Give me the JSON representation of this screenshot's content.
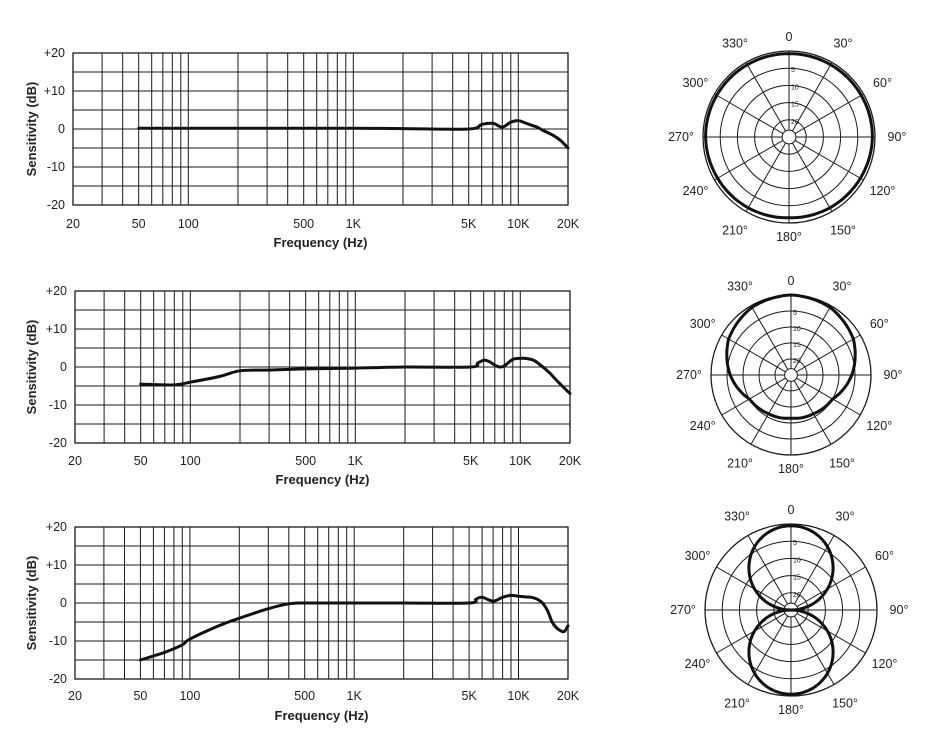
{
  "chart_data": [
    {
      "type": "line",
      "xlabel": "Frequency (Hz)",
      "ylabel": "Sensitivity (dB)",
      "x_scale": "log",
      "xlim": [
        20,
        20000
      ],
      "ylim": [
        -20,
        20
      ],
      "x_ticks": [
        20,
        50,
        100,
        500,
        1000,
        5000,
        10000,
        20000
      ],
      "x_tick_labels": [
        "20",
        "50",
        "100",
        "500",
        "1K",
        "5K",
        "10K",
        "20K"
      ],
      "y_ticks": [
        20,
        10,
        0,
        -10,
        -20
      ],
      "y_tick_labels": [
        "+20",
        "+10",
        "0",
        "-10",
        "-20"
      ],
      "grid": true,
      "x": [
        50,
        100,
        200,
        500,
        1000,
        2000,
        5000,
        6000,
        7000,
        8000,
        9000,
        10000,
        11000,
        12000,
        13000,
        14000,
        16000,
        18000,
        20000
      ],
      "y": [
        0.2,
        0.2,
        0.2,
        0.2,
        0.2,
        0.1,
        0,
        1.2,
        1.5,
        0.5,
        1.8,
        2.2,
        1.6,
        1,
        0.5,
        -0.3,
        -1.5,
        -3,
        -5
      ]
    },
    {
      "type": "line",
      "xlabel": "Frequency (Hz)",
      "ylabel": "Sensitivity (dB)",
      "x_scale": "log",
      "xlim": [
        20,
        20000
      ],
      "ylim": [
        -20,
        20
      ],
      "x_ticks": [
        20,
        50,
        100,
        500,
        1000,
        5000,
        10000,
        20000
      ],
      "x_tick_labels": [
        "20",
        "50",
        "100",
        "500",
        "1K",
        "5K",
        "10K",
        "20K"
      ],
      "y_ticks": [
        20,
        10,
        0,
        -10,
        -20
      ],
      "y_tick_labels": [
        "+20",
        "+10",
        "0",
        "-10",
        "-20"
      ],
      "grid": true,
      "x": [
        50,
        80,
        100,
        150,
        200,
        300,
        500,
        1000,
        2000,
        5000,
        5500,
        6000,
        6500,
        7000,
        7500,
        8000,
        9000,
        10000,
        11000,
        12000,
        13000,
        15000,
        17000,
        20000
      ],
      "y": [
        -4.5,
        -4.7,
        -4,
        -2.5,
        -1,
        -0.8,
        -0.5,
        -0.3,
        0,
        0,
        1,
        1.8,
        1.4,
        0.5,
        0,
        0.3,
        2,
        2.3,
        2.2,
        1.8,
        0.8,
        -1.5,
        -4,
        -7
      ]
    },
    {
      "type": "line",
      "xlabel": "Frequency (Hz)",
      "ylabel": "Sensitivity (dB)",
      "x_scale": "log",
      "xlim": [
        20,
        20000
      ],
      "ylim": [
        -20,
        20
      ],
      "x_ticks": [
        20,
        50,
        100,
        500,
        1000,
        5000,
        10000,
        20000
      ],
      "x_tick_labels": [
        "20",
        "50",
        "100",
        "500",
        "1K",
        "5K",
        "10K",
        "20K"
      ],
      "y_ticks": [
        20,
        10,
        0,
        -10,
        -20
      ],
      "y_tick_labels": [
        "+20",
        "+10",
        "0",
        "-10",
        "-20"
      ],
      "grid": true,
      "x": [
        50,
        70,
        90,
        100,
        150,
        200,
        300,
        400,
        500,
        1000,
        2000,
        5000,
        5500,
        6000,
        7000,
        8000,
        9000,
        10000,
        11000,
        12000,
        13000,
        14000,
        15000,
        16000,
        17000,
        18000,
        19000,
        20000
      ],
      "y": [
        -15,
        -13,
        -11,
        -9.5,
        -6,
        -4,
        -1.5,
        -0.2,
        0,
        0,
        0,
        0,
        1,
        1.5,
        0.5,
        1.5,
        2,
        1.8,
        1.6,
        1.5,
        1,
        0,
        -2,
        -5,
        -6.5,
        -7.3,
        -7.5,
        -6
      ]
    },
    {
      "type": "polar",
      "pattern": "omnidirectional",
      "angle_labels": [
        "0",
        "30°",
        "60°",
        "90°",
        "120°",
        "150°",
        "180°",
        "210°",
        "240°",
        "270°",
        "300°",
        "330°"
      ],
      "ring_labels": [
        "5",
        "10",
        "15",
        "20"
      ],
      "angles": [
        0,
        30,
        60,
        90,
        120,
        150,
        180,
        210,
        240,
        270,
        300,
        330
      ],
      "db": [
        0,
        0,
        0,
        0,
        -0.3,
        -0.5,
        -0.8,
        -0.5,
        -0.3,
        0,
        0,
        0
      ]
    },
    {
      "type": "polar",
      "pattern": "cardioid",
      "angle_labels": [
        "0",
        "30°",
        "60°",
        "90°",
        "120°",
        "150°",
        "180°",
        "210°",
        "240°",
        "270°",
        "300°",
        "330°"
      ],
      "ring_labels": [
        "5",
        "10",
        "15",
        "20"
      ],
      "angles": [
        0,
        30,
        60,
        90,
        120,
        150,
        165,
        180,
        195,
        210,
        240,
        270,
        300,
        330
      ],
      "db": [
        0,
        -0.6,
        -2.5,
        -6,
        -10,
        -11,
        -11.2,
        -11.5,
        -11.2,
        -11,
        -10,
        -6,
        -2.5,
        -0.6
      ]
    },
    {
      "type": "polar",
      "pattern": "figure-8",
      "angle_labels": [
        "0",
        "30°",
        "60°",
        "90°",
        "120°",
        "150°",
        "180°",
        "210°",
        "240°",
        "270°",
        "300°",
        "330°"
      ],
      "ring_labels": [
        "5",
        "10",
        "15",
        "20"
      ],
      "angles": [
        0,
        30,
        60,
        90,
        120,
        150,
        180,
        210,
        240,
        270,
        300,
        330
      ],
      "db": [
        0,
        -1.2,
        -6,
        -25,
        -6,
        -1.2,
        0,
        -1.2,
        -6,
        -25,
        -6,
        -1.2
      ]
    }
  ]
}
